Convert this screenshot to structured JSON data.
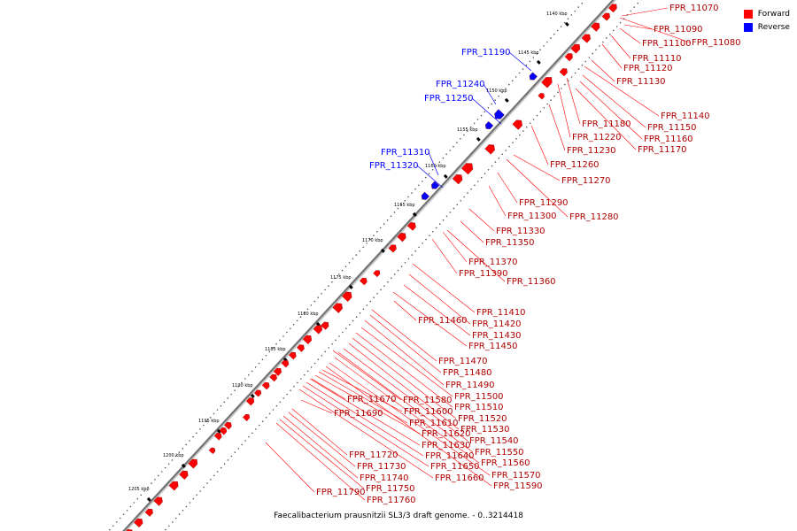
{
  "legend": {
    "forward_label": "Forward",
    "reverse_label": "Reverse",
    "forward_color": "#ff0000",
    "reverse_color": "#0000ff"
  },
  "caption": "Faecalibacterium prausnitzii SL3/3 draft genome. - 0..3214418",
  "axis_ticks": [
    "1140 kbp",
    "1145 kbp",
    "1150 kbp",
    "1155 kbp",
    "1160 kbp",
    "1165 kbp",
    "1170 kbp",
    "1175 kbp",
    "1180 kbp",
    "1185 kbp",
    "1190 kbp",
    "1195 kbp",
    "1200 kbp",
    "1205 kbp"
  ],
  "reverse_genes": [
    "FPR_11190",
    "FPR_11240",
    "FPR_11250",
    "FPR_11310",
    "FPR_11320"
  ],
  "forward_genes": [
    "FPR_11070",
    "FPR_11080",
    "FPR_11090",
    "FPR_11100",
    "FPR_11110",
    "FPR_11120",
    "FPR_11130",
    "FPR_11140",
    "FPR_11150",
    "FPR_11160",
    "FPR_11170",
    "FPR_11180",
    "FPR_11220",
    "FPR_11230",
    "FPR_11260",
    "FPR_11270",
    "FPR_11280",
    "FPR_11290",
    "FPR_11300",
    "FPR_11330",
    "FPR_11350",
    "FPR_11360",
    "FPR_11370",
    "FPR_11390",
    "FPR_11410",
    "FPR_11420",
    "FPR_11430",
    "FPR_11450",
    "FPR_11460",
    "FPR_11470",
    "FPR_11480",
    "FPR_11490",
    "FPR_11500",
    "FPR_11510",
    "FPR_11520",
    "FPR_11530",
    "FPR_11540",
    "FPR_11550",
    "FPR_11560",
    "FPR_11570",
    "FPR_11580",
    "FPR_11590",
    "FPR_11600",
    "FPR_11610",
    "FPR_11620",
    "FPR_11630",
    "FPR_11640",
    "FPR_11650",
    "FPR_11660",
    "FPR_11670",
    "FPR_11690",
    "FPR_11720",
    "FPR_11730",
    "FPR_11740",
    "FPR_11750",
    "FPR_11760",
    "FPR_11790"
  ]
}
